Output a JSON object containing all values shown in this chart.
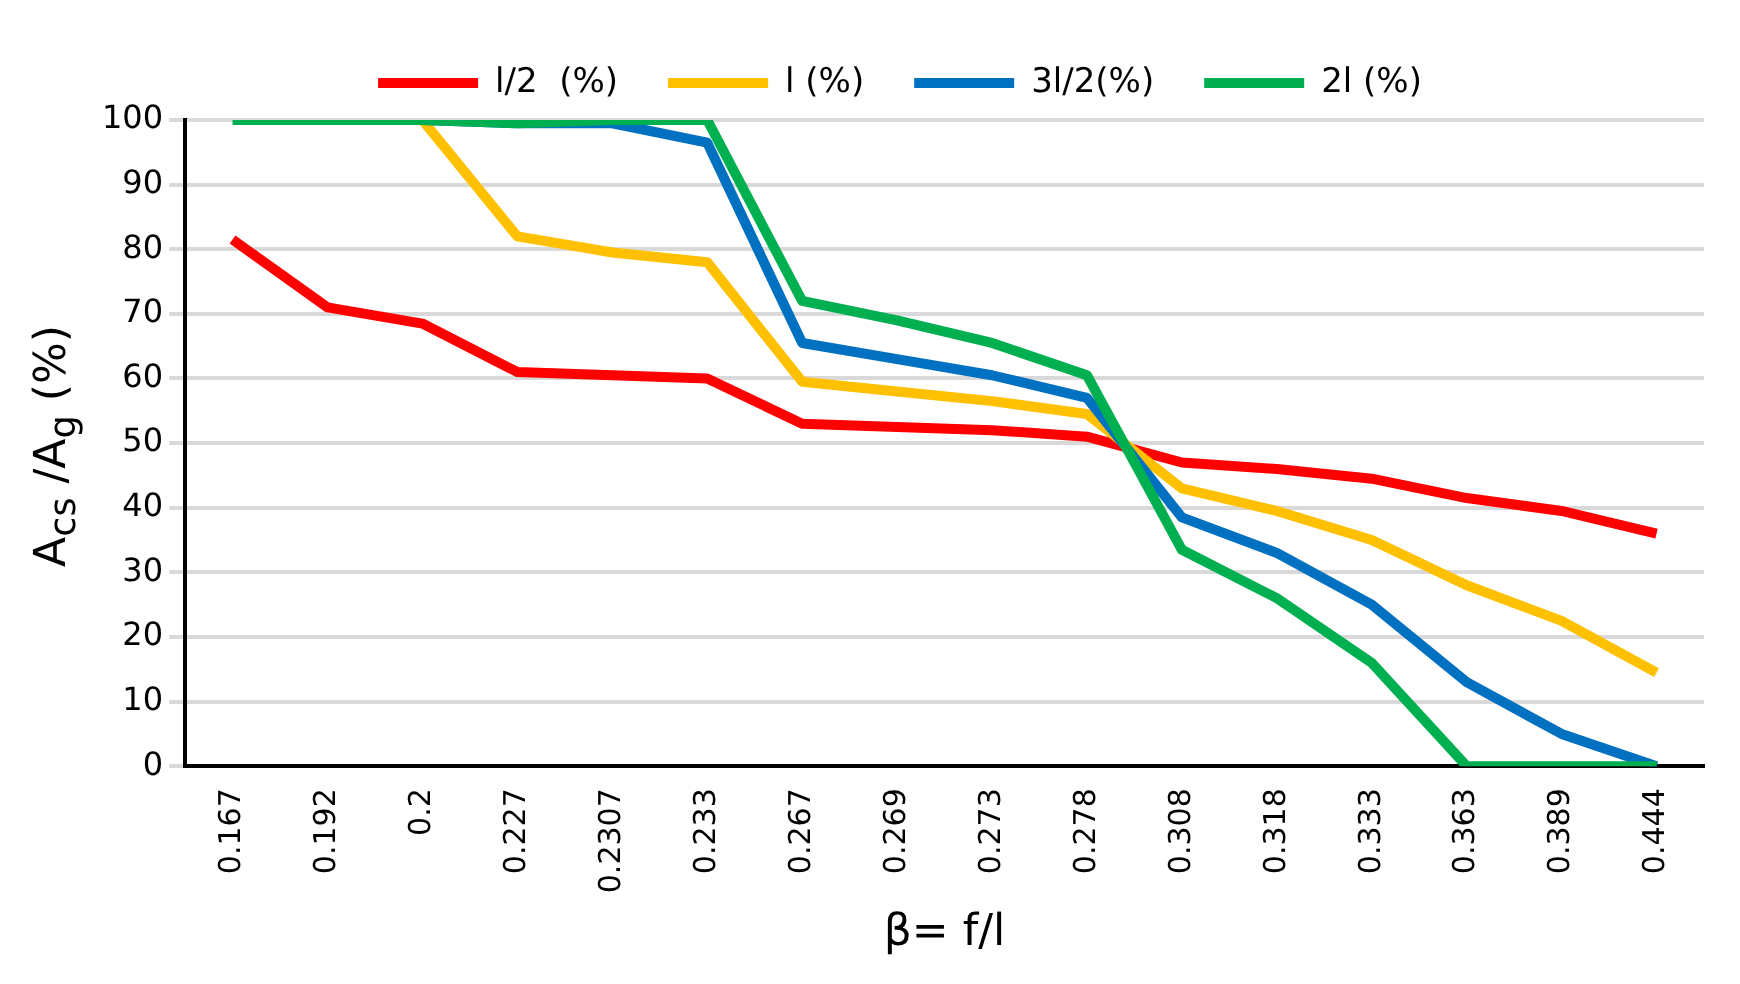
{
  "chart_data": {
    "type": "line",
    "xlabel": "β= f/l",
    "ylabel": "A$_{cs}$ /A$_{g}$ (%)",
    "categories": [
      "0.167",
      "0.192",
      "0.2",
      "0.227",
      "0.2307",
      "0.233",
      "0.267",
      "0.269",
      "0.273",
      "0.278",
      "0.308",
      "0.318",
      "0.333",
      "0.363",
      "0.389",
      "0.444"
    ],
    "series": [
      {
        "name": "l/2  (%)",
        "color": "#ff0000",
        "values": [
          81.5,
          71,
          68.5,
          61,
          60.5,
          60,
          53,
          52.5,
          52,
          51,
          47,
          46,
          44.5,
          41.5,
          39.5,
          36
        ]
      },
      {
        "name": "l (%)",
        "color": "#ffc000",
        "values": [
          null,
          null,
          100,
          82,
          79.5,
          78,
          59.5,
          58,
          56.5,
          54.5,
          43,
          39.5,
          35,
          28,
          22.5,
          14.5
        ]
      },
      {
        "name": "3l/2(%)",
        "color": "#0070c0",
        "values": [
          null,
          null,
          100,
          99.5,
          99.5,
          96.5,
          65.5,
          63,
          60.5,
          57,
          38.5,
          33,
          25,
          13,
          5,
          0
        ]
      },
      {
        "name": "2l (%)",
        "color": "#00b050",
        "values": [
          100,
          100,
          100,
          99.5,
          100,
          100,
          72,
          69,
          65.5,
          60.5,
          33.5,
          26,
          16,
          0,
          0,
          0
        ]
      }
    ],
    "ylim": [
      0,
      100
    ],
    "yticks": [
      0,
      10,
      20,
      30,
      40,
      50,
      60,
      70,
      80,
      90,
      100
    ],
    "grid": "y",
    "legend": "top",
    "marker": "none",
    "line_style": "solid"
  }
}
